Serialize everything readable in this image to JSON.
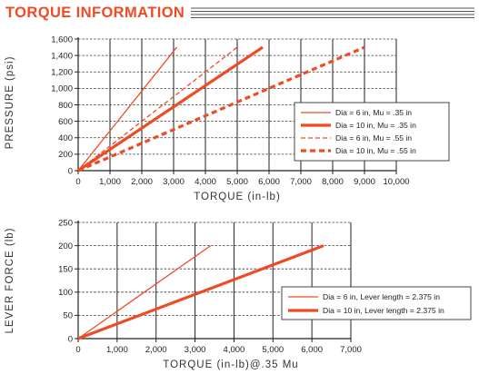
{
  "page": {
    "title": "TORQUE INFORMATION"
  },
  "chart_data": [
    {
      "type": "line",
      "xlabel": "TORQUE (in-lb)",
      "ylabel": "PRESSURE (psi)",
      "xlim": [
        0,
        10000
      ],
      "ylim": [
        0,
        1600
      ],
      "xticks": [
        0,
        1000,
        2000,
        3000,
        4000,
        5000,
        6000,
        7000,
        8000,
        9000,
        10000
      ],
      "xtick_labels": [
        "0",
        "1,000",
        "2,000",
        "3,000",
        "4,000",
        "5,000",
        "6,000",
        "7,000",
        "8,000",
        "9,000",
        "10,000"
      ],
      "yticks": [
        0,
        200,
        400,
        600,
        800,
        1000,
        1200,
        1400,
        1600
      ],
      "ytick_labels": [
        "0",
        "200",
        "400",
        "600",
        "800",
        "1,000",
        "1,200",
        "1,400",
        "1,600"
      ],
      "grid": true,
      "legend_position": "right",
      "series": [
        {
          "name": "Dia = 6 in, Mu = .35 in",
          "style": "thin-solid",
          "x": [
            0,
            3100
          ],
          "y": [
            0,
            1500
          ]
        },
        {
          "name": "Dia = 10 in, Mu = .35 in",
          "style": "thick-solid",
          "x": [
            0,
            5800
          ],
          "y": [
            0,
            1500
          ]
        },
        {
          "name": "Dia = 6 in, Mu = .55 in",
          "style": "thin-dashed",
          "x": [
            0,
            5000
          ],
          "y": [
            0,
            1500
          ]
        },
        {
          "name": "Dia = 10 in, Mu = .55 in",
          "style": "thick-dashed",
          "x": [
            0,
            9000
          ],
          "y": [
            0,
            1500
          ]
        }
      ]
    },
    {
      "type": "line",
      "xlabel": "TORQUE (in-lb)@.35 Mu",
      "ylabel": "LEVER FORCE (lb)",
      "xlim": [
        0,
        7000
      ],
      "ylim": [
        0,
        250
      ],
      "xticks": [
        0,
        1000,
        2000,
        3000,
        4000,
        5000,
        6000,
        7000
      ],
      "xtick_labels": [
        "0",
        "1,000",
        "2,000",
        "3,000",
        "4,000",
        "5,000",
        "6,000",
        "7,000"
      ],
      "yticks": [
        0,
        50,
        100,
        150,
        200,
        250
      ],
      "ytick_labels": [
        "0",
        "50",
        "100",
        "150",
        "200",
        "250"
      ],
      "grid": true,
      "legend_position": "right",
      "series": [
        {
          "name": "Dia = 6 in, Lever length = 2.375 in",
          "style": "thin-solid",
          "x": [
            0,
            3400
          ],
          "y": [
            0,
            200
          ]
        },
        {
          "name": "Dia = 10 in, Lever length = 2.375 in",
          "style": "thick-solid",
          "x": [
            0,
            6300
          ],
          "y": [
            0,
            200
          ]
        }
      ]
    }
  ],
  "colors": {
    "accent": "#ee4b25",
    "grid": "#222222",
    "axis": "#222222"
  }
}
